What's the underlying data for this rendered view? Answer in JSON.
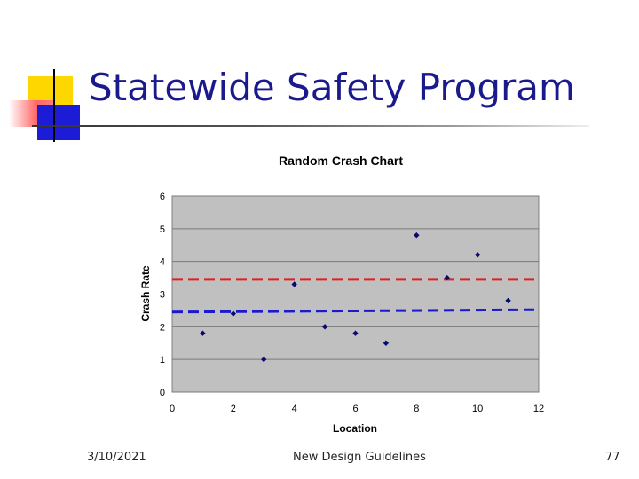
{
  "slide": {
    "title": "Statewide Safety Program",
    "footer_date": "3/10/2021",
    "footer_center": "New Design Guidelines",
    "page_number": "77"
  },
  "colors": {
    "title": "#1a1a8c",
    "deco_yellow": "#ffd700",
    "deco_red": "#ff6666",
    "deco_blue": "#1c1cd6",
    "plot_bg": "#c0c0c0",
    "marker": "#0a0a6e",
    "upper_line": "#e02020",
    "lower_line": "#1a1acc"
  },
  "chart_data": {
    "type": "scatter",
    "title": "Random Crash Chart",
    "xlabel": "Location",
    "ylabel": "Crash Rate",
    "xlim": [
      0,
      12
    ],
    "ylim": [
      0,
      6
    ],
    "xticks": [
      0,
      2,
      4,
      6,
      8,
      10,
      12
    ],
    "yticks": [
      0,
      1,
      2,
      3,
      4,
      5,
      6
    ],
    "grid": "horizontal",
    "legend": "none",
    "series": [
      {
        "name": "Crash Rate",
        "x": [
          1,
          2,
          3,
          4,
          5,
          6,
          7,
          8,
          9,
          10,
          11
        ],
        "y": [
          1.8,
          2.4,
          1.0,
          3.3,
          2.0,
          1.8,
          1.5,
          4.8,
          3.5,
          4.2,
          2.8
        ]
      }
    ],
    "reference_lines": [
      {
        "name": "upper",
        "style": "dashed",
        "color": "#e02020",
        "y_start": 3.45,
        "y_end": 3.45
      },
      {
        "name": "lower",
        "style": "dashed",
        "color": "#1a1acc",
        "y_start": 2.45,
        "y_end": 2.52
      }
    ]
  }
}
